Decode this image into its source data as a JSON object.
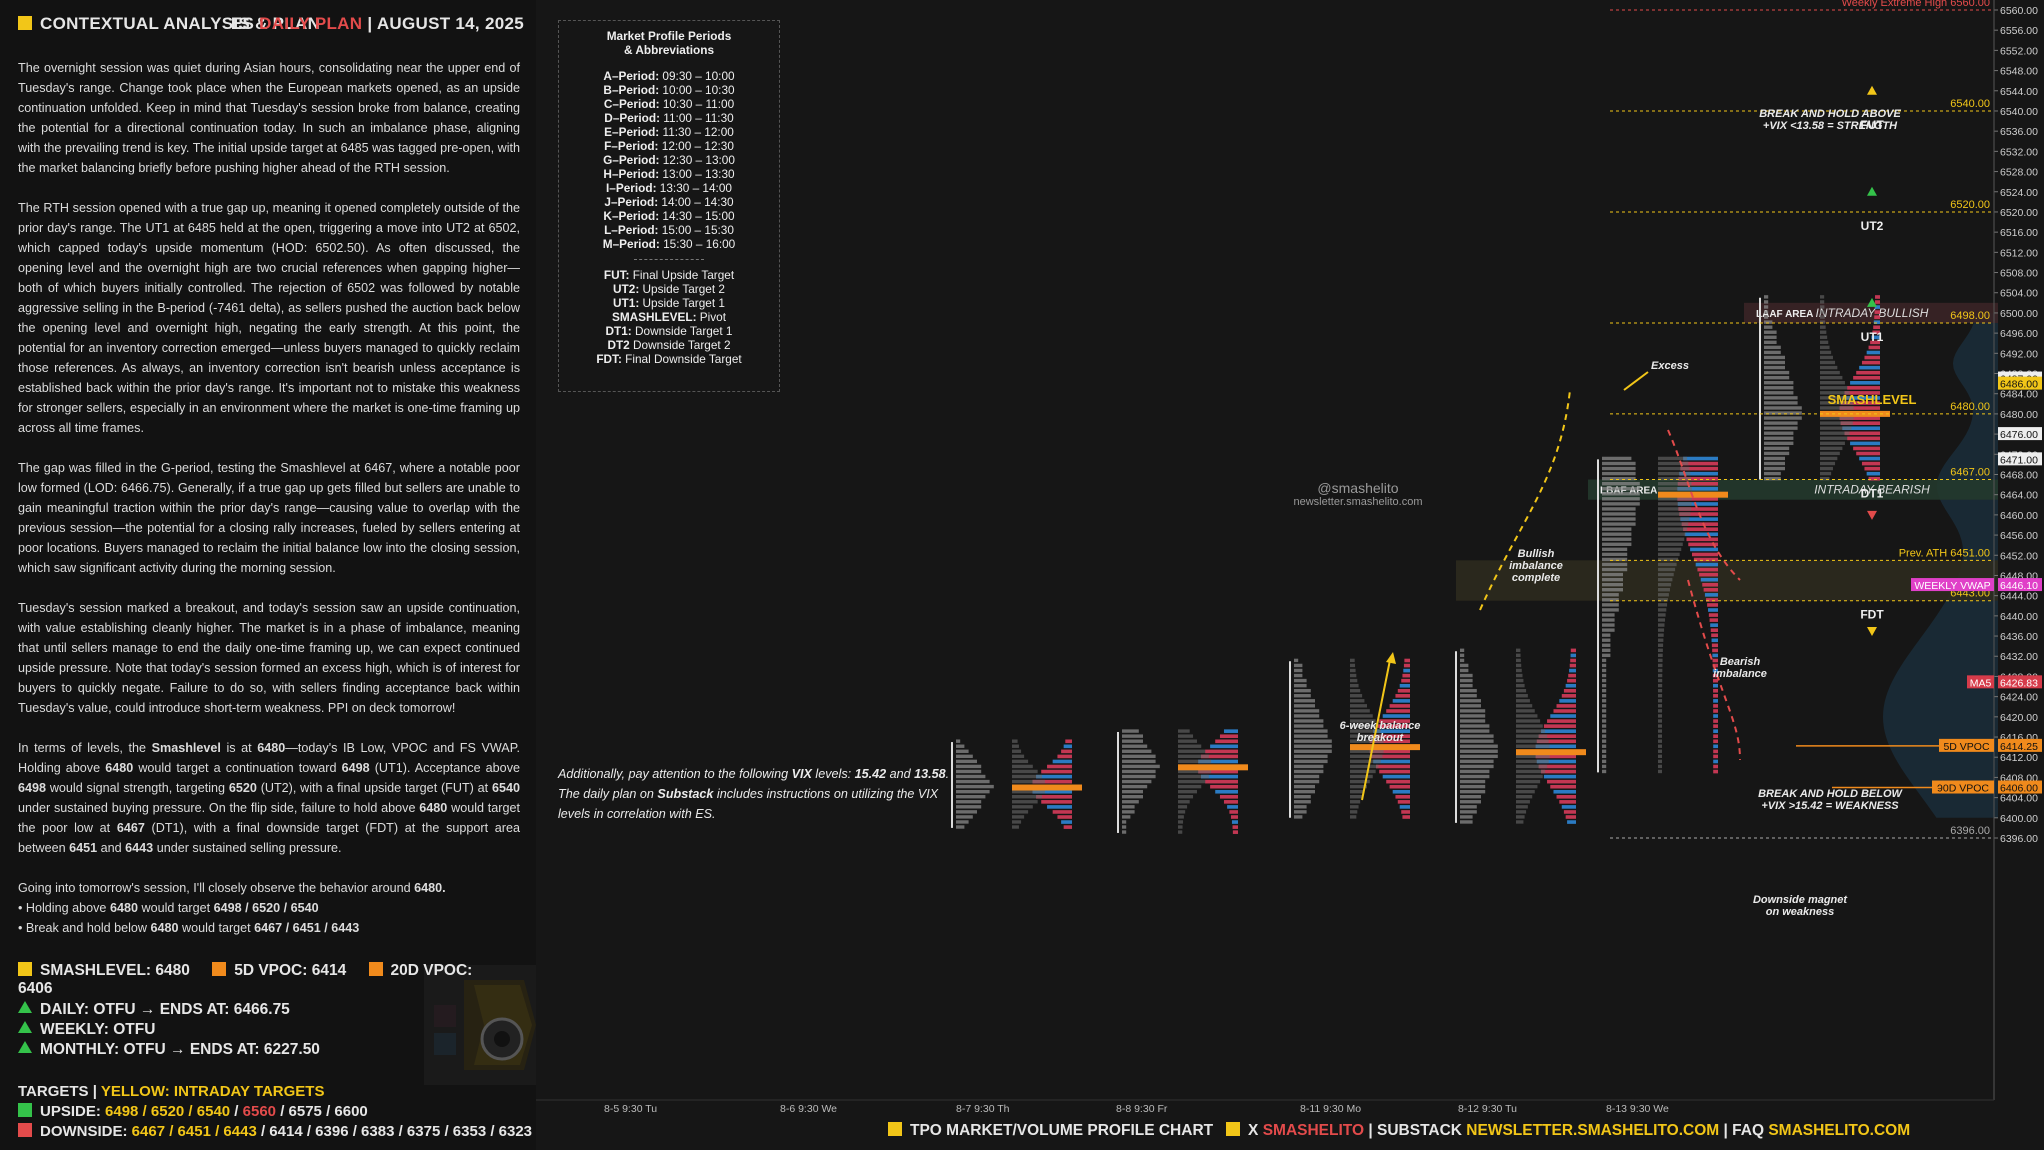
{
  "header": {
    "title": "CONTEXTUAL ANALYSIS & PLAN",
    "instrument": "ES",
    "plan_label": "DAILY PLAN",
    "separator": "|",
    "date": "AUGUST 14, 2025"
  },
  "body": {
    "paragraphs": [
      "The overnight session was quiet during Asian hours, consolidating near the upper end of Tuesday's range. Change took place when the European markets opened, as an upside continuation unfolded. Keep in mind that Tuesday's session broke from balance, creating the potential for a directional continuation today. In such an imbalance phase, aligning with the prevailing trend is key. The initial upside target at 6485 was tagged pre-open, with the market balancing briefly before pushing higher ahead of the RTH session.",
      "The RTH session opened with a true gap up, meaning it opened completely outside of the prior day's range. The UT1 at 6485 held at the open, triggering a move into UT2 at 6502, which capped today's upside momentum (HOD: 6502.50). As often discussed, the opening level and the overnight high are two crucial references when gapping higher—both of which buyers initially controlled. The rejection of 6502 was followed by notable aggressive selling in the B-period (-7461 delta), as sellers pushed the auction back below the opening level and overnight high, negating the early strength. At this point, the potential for an inventory correction emerged—unless buyers managed to quickly reclaim those references. As always, an inventory correction isn't bearish unless acceptance is established back within the prior day's range. It's important not to mistake this weakness for stronger sellers, especially in an environment where the market is one-time framing up across all time frames.",
      "The gap was filled in the G-period, testing the Smashlevel at 6467, where a notable poor low formed (LOD: 6466.75). Generally, if a true gap up gets filled but sellers are unable to gain meaningful traction within the prior day's range—causing value to overlap with the previous session—the potential for a closing rally increases, fueled by sellers entering at poor locations. Buyers managed to reclaim the initial balance low into the closing session, which saw significant activity during the morning session.",
      "Tuesday's session marked a breakout, and today's session saw an upside continuation, with value establishing cleanly higher. The market is in a phase of imbalance, meaning that until sellers manage to end the daily one-time framing up, we can expect continued upside pressure. Note that today's session formed an excess high, which is of interest for buyers to quickly negate. Failure to do so, with sellers finding acceptance back within Tuesday's value, could introduce short-term weakness. PPI on deck tomorrow!"
    ],
    "levels_paragraph": {
      "t1": "In terms of levels, the ",
      "b1": "Smashlevel",
      "t2": " is at ",
      "b2": "6480",
      "t3": "—today's IB Low, VPOC and FS VWAP. Holding above ",
      "b3": "6480",
      "t4": " would target a continuation toward ",
      "b4": "6498",
      "t5": " (UT1). Acceptance above ",
      "b5": "6498",
      "t6": " would signal strength, targeting ",
      "b6": "6520",
      "t7": " (UT2), with a final upside target (FUT) at ",
      "b7": "6540",
      "t8": " under sustained buying pressure. On the flip side, failure to hold above ",
      "b8": "6480",
      "t9": " would target the poor low at ",
      "b9": "6467",
      "t10": " (DT1), with a final downside target (FDT) at the support area between ",
      "b10": "6451",
      "t11": " and ",
      "b11": "6443",
      "t12": " under sustained selling pressure."
    },
    "closing": {
      "t1": "Going into tomorrow's session, I'll closely observe the behavior around ",
      "b1": "6480.",
      "bul1a": "• Holding above ",
      "bul1b": "6480",
      "bul1c": " would target ",
      "bul1d": "6498 / 6520 / 6540",
      "bul2a": "• Break and hold below ",
      "bul2b": "6480",
      "bul2c": " would target ",
      "bul2d": "6467 / 6451 / 6443"
    }
  },
  "levels_bar": {
    "smash": "SMASHLEVEL: 6480",
    "vpoc5": "5D VPOC: 6414",
    "vpoc20": "20D VPOC: 6406"
  },
  "trend": {
    "daily": "DAILY: OTFU",
    "daily_end": "ENDS AT: 6466.75",
    "weekly": "WEEKLY: OTFU",
    "monthly": "MONTHLY: OTFU",
    "monthly_end": "ENDS AT: 6227.50",
    "arrow": "→"
  },
  "targets": {
    "label": "TARGETS",
    "sep": "|",
    "intraday": "YELLOW: INTRADAY TARGETS",
    "upside_label": "UPSIDE:",
    "upside_yellow": "6498 / 6520 / 6540",
    "upside_sep": " / ",
    "upside_red": "6560",
    "upside_rest": " / 6575 / 6600",
    "downside_label": "DOWNSIDE:",
    "downside_yellow": "6467 / 6451 / 6443",
    "downside_rest": " / 6414 / 6396 / 6383 / 6375 / 6353 / 6323"
  },
  "footer": {
    "chart_label": "TPO MARKET/VOLUME PROFILE CHART",
    "x": "X",
    "x_handle": "SMASHELITO",
    "sep": "|",
    "substack": "SUBSTACK",
    "substack_url": "NEWSLETTER.SMASHELITO.COM",
    "faq": "FAQ",
    "faq_url": "SMASHELITO.COM"
  },
  "legend": {
    "title": "Market Profile Periods\n& Abbreviations",
    "periods": [
      {
        "k": "A–Period:",
        "v": " 09:30 – 10:00"
      },
      {
        "k": "B–Period:",
        "v": " 10:00 – 10:30"
      },
      {
        "k": "C–Period:",
        "v": " 10:30 – 11:00"
      },
      {
        "k": "D–Period:",
        "v": " 11:00 – 11:30"
      },
      {
        "k": "E–Period:",
        "v": " 11:30 – 12:00"
      },
      {
        "k": "F–Period:",
        "v": " 12:00 – 12:30"
      },
      {
        "k": "G–Period:",
        "v": " 12:30 – 13:00"
      },
      {
        "k": "H–Period:",
        "v": " 13:00 – 13:30"
      },
      {
        "k": "I–Period:",
        "v": " 13:30 – 14:00"
      },
      {
        "k": "J–Period:",
        "v": " 14:00 – 14:30"
      },
      {
        "k": "K–Period:",
        "v": " 14:30 – 15:00"
      },
      {
        "k": "L–Period:",
        "v": " 15:00 – 15:30"
      },
      {
        "k": "M–Period:",
        "v": " 15:30 – 16:00"
      }
    ],
    "abbrevs": [
      {
        "k": "FUT:",
        "v": " Final Upside Target"
      },
      {
        "k": "UT2:",
        "v": " Upside Target 2"
      },
      {
        "k": "UT1:",
        "v": " Upside Target 1"
      },
      {
        "k": "SMASHLEVEL:",
        "v": " Pivot"
      },
      {
        "k": "DT1:",
        "v": " Downside Target 1"
      },
      {
        "k": "DT2",
        "v": " Downside Target 2"
      },
      {
        "k": "FDT:",
        "v": " Final Downside Target"
      }
    ]
  },
  "vix_note": {
    "t1": "Additionally, pay attention to the following ",
    "b1": "VIX",
    "t2": " levels: ",
    "b2": "15.42",
    "t3": " and ",
    "b3": "13.58",
    "t4": ". The daily plan on ",
    "b4": "Substack",
    "t5": " includes instructions on utilizing the VIX levels in correlation with ES."
  },
  "watermark": {
    "handle": "@smashelito",
    "site": "newsletter.smashelito.com"
  },
  "chart_data": {
    "type": "tpo-profile",
    "y_axis": {
      "min": 6396,
      "max": 6560,
      "ticks": [
        6560,
        6556,
        6552,
        6548,
        6544,
        6540,
        6536,
        6532,
        6528,
        6524,
        6520,
        6516,
        6512,
        6508,
        6504,
        6500,
        6496,
        6492,
        6488,
        6484,
        6480,
        6476,
        6472,
        6468,
        6464,
        6460,
        6456,
        6452,
        6448,
        6444,
        6440,
        6436,
        6432,
        6428,
        6424,
        6420,
        6416,
        6412,
        6408,
        6404,
        6400,
        6396
      ],
      "tick_labels": [
        "6560.00",
        "6556.00",
        "6552.00",
        "6548.00",
        "6544.00",
        "6540.00",
        "6536.00",
        "6532.00",
        "6528.00",
        "6524.00",
        "6520.00",
        "6516.00",
        "6512.00",
        "6508.00",
        "6504.00",
        "6500.00",
        "6496.00",
        "6492.00",
        "6488.00",
        "6484.00",
        "6480.00",
        "6476.00",
        "6472.00",
        "6468.00",
        "6464.00",
        "6460.00",
        "6456.00",
        "6452.00",
        "6448.00",
        "6444.00",
        "6440.00",
        "6436.00",
        "6432.00",
        "6428.00",
        "6424.00",
        "6420.00",
        "6416.00",
        "6412.00",
        "6408.00",
        "6404.00",
        "6400.00",
        "6396.00"
      ]
    },
    "x_labels": [
      "8-5  9:30 Tu",
      "8-6  9:30 We",
      "8-7  9:30 Th",
      "8-8  9:30 Fr",
      "8-11  9:30 Mo",
      "8-12  9:30 Tu",
      "8-13  9:30 We"
    ],
    "sessions": [
      {
        "low": 6398,
        "high": 6415,
        "vpoc": 6406
      },
      {
        "low": 6397,
        "high": 6417,
        "vpoc": 6410
      },
      {
        "low": 6400,
        "high": 6431,
        "vpoc": 6414
      },
      {
        "low": 6399,
        "high": 6433,
        "vpoc": 6413
      },
      {
        "low": 6409,
        "high": 6471,
        "vpoc": 6464
      },
      {
        "low": 6467,
        "high": 6503,
        "vpoc": 6480
      }
    ],
    "levels": [
      {
        "label": "Weekly Extreme High",
        "value": 6560,
        "price": "6560.00",
        "color": "#e34b4b"
      },
      {
        "label": "",
        "value": 6540,
        "price": "6540.00",
        "color": "#f2c618",
        "tag": "FUT"
      },
      {
        "label": "",
        "value": 6520,
        "price": "6520.00",
        "color": "#f2c618",
        "tag": "UT2"
      },
      {
        "label": "",
        "value": 6498,
        "price": "6498.00",
        "color": "#f2c618",
        "tag": "UT1"
      },
      {
        "label": "",
        "value": 6480,
        "price": "6480.00",
        "color": "#f2c618",
        "tag": "SMASHLEVEL"
      },
      {
        "label": "",
        "value": 6467,
        "price": "6467.00",
        "color": "#f2c618",
        "tag": "DT1"
      },
      {
        "label": "Prev. ATH",
        "value": 6451,
        "price": "6451.00",
        "color": "#f2c618"
      },
      {
        "label": "",
        "value": 6443,
        "price": "6443.00",
        "color": "#f2c618",
        "tag": "FDT"
      },
      {
        "label": "",
        "value": 6396,
        "price": "6396.00",
        "color": "#aaaaaa"
      }
    ],
    "price_tags": [
      {
        "label": "",
        "price": "6487.00",
        "value": 6487,
        "bg": "#eeeeee",
        "fg": "#111111"
      },
      {
        "label": "",
        "price": "6486.00",
        "value": 6486,
        "bg": "#f2c618",
        "fg": "#111111"
      },
      {
        "label": "",
        "price": "6476.00",
        "value": 6476,
        "bg": "#eeeeee",
        "fg": "#111111"
      },
      {
        "label": "",
        "price": "6471.00",
        "value": 6471,
        "bg": "#eeeeee",
        "fg": "#111111"
      },
      {
        "label": "WEEKLY VWAP",
        "price": "6446.10",
        "value": 6446.1,
        "bg": "#e040c8",
        "fg": "#ffffff"
      },
      {
        "label": "MA5",
        "price": "6426.83",
        "value": 6426.83,
        "bg": "#d63b4a",
        "fg": "#ffffff"
      },
      {
        "label": "5D VPOC",
        "price": "6414.25",
        "value": 6414.25,
        "bg": "#f08a1c",
        "fg": "#111111"
      },
      {
        "label": "90D VPOC",
        "price": "6406.00",
        "value": 6406,
        "bg": "#f08a1c",
        "fg": "#111111"
      }
    ],
    "zones": [
      {
        "label": "LAAF AREA",
        "tag": "INTRADAY BULLISH",
        "low": 6498,
        "high": 6502
      },
      {
        "label": "LBAF AREA",
        "tag": "INTRADAY BEARISH",
        "low": 6463,
        "high": 6467
      },
      {
        "label": "",
        "tag": "",
        "low": 6443,
        "high": 6451
      }
    ],
    "annotations": [
      "BREAK AND HOLD ABOVE\n+VIX <13.58 = STRENGTH",
      "BREAK AND HOLD BELOW\n+VIX >15.42 = WEAKNESS",
      "Excess",
      "Bullish\nimbalance\ncomplete",
      "Bearish\nimbalance",
      "6-week balance\nbreakout",
      "Downside magnet\non weakness"
    ]
  },
  "colors": {
    "yellow": "#f2c618",
    "orange": "#f08a1c",
    "green": "#34c24a",
    "red": "#e34b4b",
    "blue": "#2e86d6",
    "pink": "#d63b5a"
  }
}
